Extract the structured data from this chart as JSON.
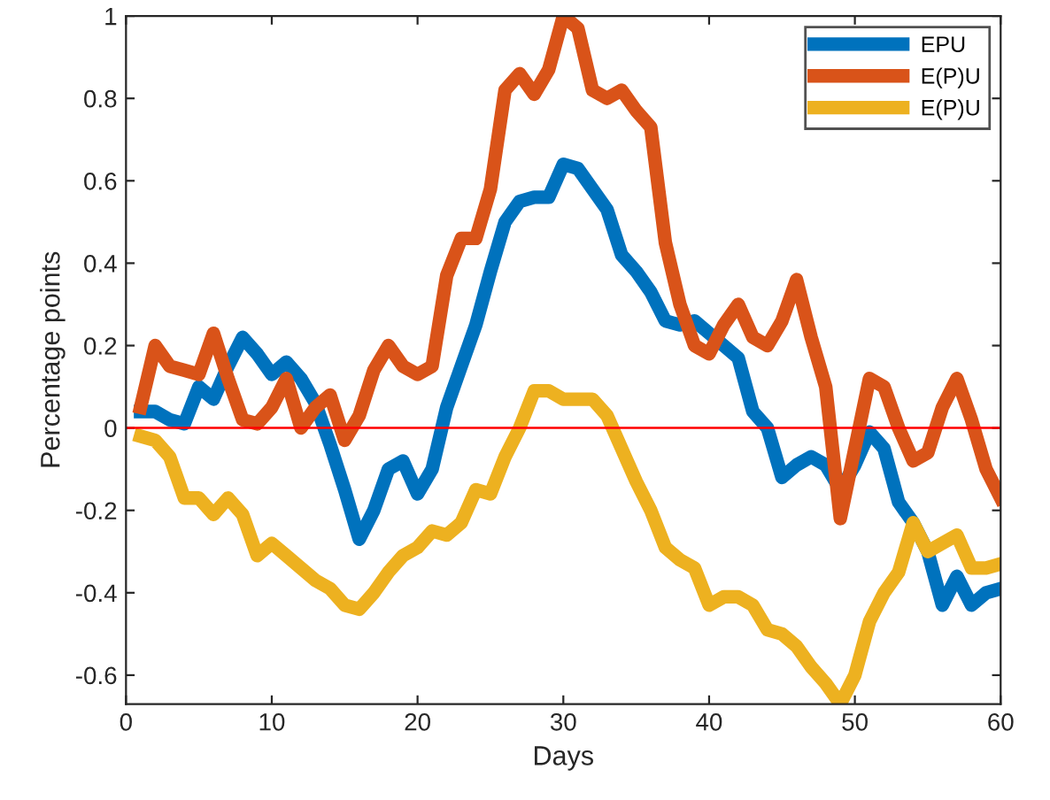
{
  "chart_data": {
    "type": "line",
    "xlabel": "Days",
    "ylabel": "Percentage points",
    "x": [
      1,
      2,
      3,
      4,
      5,
      6,
      7,
      8,
      9,
      10,
      11,
      12,
      13,
      14,
      15,
      16,
      17,
      18,
      19,
      20,
      21,
      22,
      23,
      24,
      25,
      26,
      27,
      28,
      29,
      30,
      31,
      32,
      33,
      34,
      35,
      36,
      37,
      38,
      39,
      40,
      41,
      42,
      43,
      44,
      45,
      46,
      47,
      48,
      49,
      50,
      51,
      52,
      53,
      54,
      55,
      56,
      57,
      58,
      59,
      60
    ],
    "series": [
      {
        "name": "EPU",
        "color": "#0072bd",
        "values": [
          0.04,
          0.04,
          0.02,
          0.01,
          0.1,
          0.07,
          0.15,
          0.22,
          0.18,
          0.13,
          0.16,
          0.12,
          0.06,
          -0.04,
          -0.15,
          -0.27,
          -0.2,
          -0.1,
          -0.08,
          -0.16,
          -0.1,
          0.05,
          0.15,
          0.25,
          0.38,
          0.5,
          0.55,
          0.56,
          0.56,
          0.64,
          0.63,
          0.58,
          0.53,
          0.42,
          0.38,
          0.33,
          0.26,
          0.25,
          0.26,
          0.23,
          0.2,
          0.17,
          0.04,
          0.0,
          -0.12,
          -0.09,
          -0.07,
          -0.09,
          -0.15,
          -0.09,
          -0.01,
          -0.05,
          -0.18,
          -0.23,
          -0.3,
          -0.43,
          -0.36,
          -0.43,
          -0.4,
          -0.39
        ]
      },
      {
        "name": "E(P)U",
        "color": "#d95319",
        "values": [
          0.05,
          0.2,
          0.15,
          0.14,
          0.13,
          0.23,
          0.12,
          0.02,
          0.01,
          0.05,
          0.12,
          0.0,
          0.05,
          0.08,
          -0.03,
          0.03,
          0.14,
          0.2,
          0.15,
          0.13,
          0.15,
          0.37,
          0.46,
          0.46,
          0.58,
          0.82,
          0.86,
          0.81,
          0.87,
          1.0,
          0.97,
          0.82,
          0.8,
          0.82,
          0.77,
          0.73,
          0.45,
          0.3,
          0.2,
          0.18,
          0.25,
          0.3,
          0.22,
          0.2,
          0.26,
          0.36,
          0.22,
          0.1,
          -0.22,
          -0.05,
          0.12,
          0.1,
          0.0,
          -0.08,
          -0.06,
          0.05,
          0.12,
          0.02,
          -0.1,
          -0.17
        ]
      },
      {
        "name": "E(P)U",
        "color": "#edb120",
        "values": [
          -0.02,
          -0.03,
          -0.07,
          -0.17,
          -0.17,
          -0.21,
          -0.17,
          -0.21,
          -0.31,
          -0.28,
          -0.31,
          -0.34,
          -0.37,
          -0.39,
          -0.43,
          -0.44,
          -0.4,
          -0.35,
          -0.31,
          -0.29,
          -0.25,
          -0.26,
          -0.23,
          -0.15,
          -0.16,
          -0.07,
          0.0,
          0.09,
          0.09,
          0.07,
          0.07,
          0.07,
          0.03,
          -0.05,
          -0.13,
          -0.2,
          -0.29,
          -0.32,
          -0.34,
          -0.43,
          -0.41,
          -0.41,
          -0.43,
          -0.49,
          -0.5,
          -0.53,
          -0.58,
          -0.62,
          -0.67,
          -0.6,
          -0.47,
          -0.4,
          -0.35,
          -0.23,
          -0.3,
          -0.28,
          -0.26,
          -0.34,
          -0.34,
          -0.33
        ]
      }
    ],
    "xlim": [
      0,
      60
    ],
    "xticks": [
      0,
      10,
      20,
      30,
      40,
      50,
      60
    ],
    "ylim": [
      -0.67,
      1
    ],
    "yticks": [
      -0.6,
      -0.4,
      -0.2,
      0,
      0.2,
      0.4,
      0.6,
      0.8,
      1
    ],
    "ref_lines": [
      {
        "axis": "y",
        "value": 0,
        "color": "#ff0000",
        "line_style": "solid"
      }
    ],
    "grid": false,
    "legend": "top right",
    "marker": "none",
    "line_style": "solid"
  }
}
